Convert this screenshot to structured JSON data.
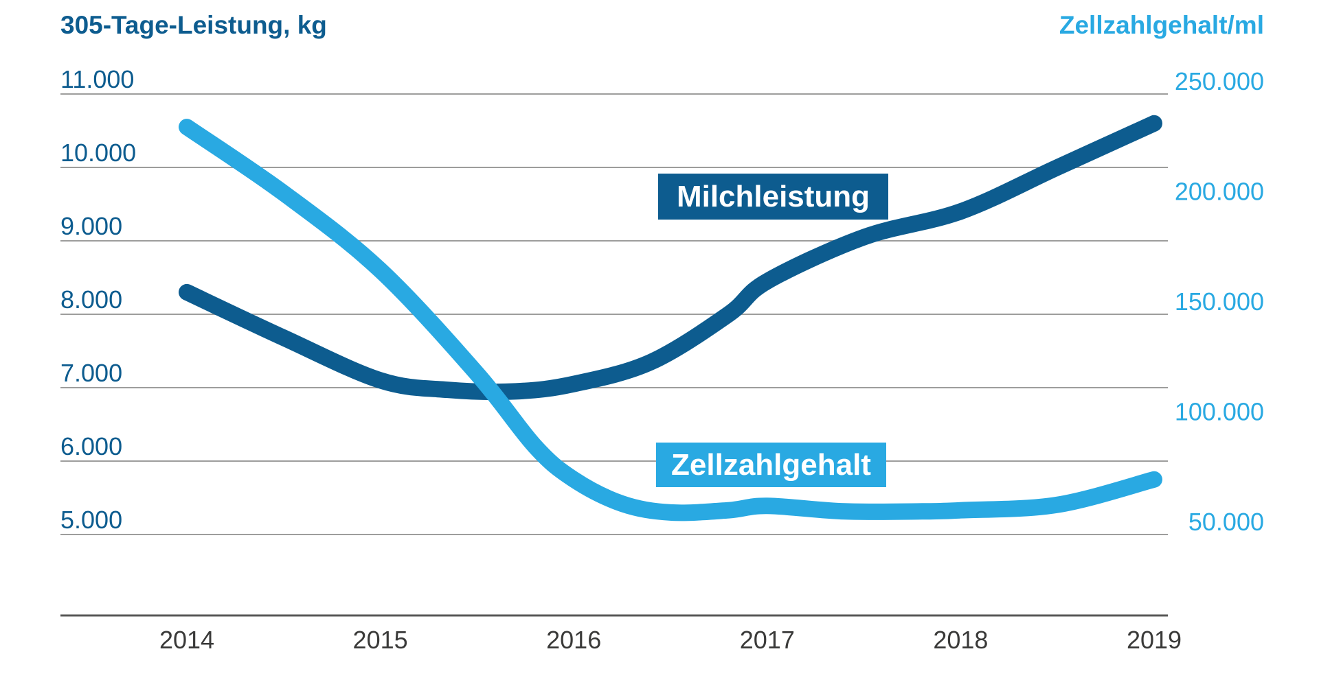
{
  "chart_data": {
    "type": "line",
    "title_left": "305-Tage-Leistung, kg",
    "title_right": "Zellzahlgehalt/ml",
    "x": {
      "tick_labels": [
        "2014",
        "2015",
        "2016",
        "2017",
        "2018",
        "2019"
      ],
      "tick_values": [
        2014,
        2015,
        2016,
        2017,
        2018,
        2019
      ],
      "label_color": "#3a3a39"
    },
    "axes": {
      "left": {
        "title": "305-Tage-Leistung, kg",
        "min": 5000,
        "max": 11000,
        "tick_values": [
          11000,
          10000,
          9000,
          8000,
          7000,
          6000,
          5000
        ],
        "tick_labels": [
          "11.000",
          "10.000",
          "9.000",
          "8.000",
          "7.000",
          "6.000",
          "5.000"
        ],
        "color": "#0d5c8f"
      },
      "right": {
        "title": "Zellzahlgehalt/ml",
        "min": 50000,
        "max": 250000,
        "tick_values": [
          250000,
          200000,
          150000,
          100000,
          50000
        ],
        "tick_labels": [
          "250.000",
          "200.000",
          "150.000",
          "100.000",
          "50.000"
        ],
        "color": "#29a9e2"
      }
    },
    "grid": {
      "color": "#9d9d9c",
      "show": true
    },
    "axis_line_color": "#575756",
    "legend_position": "inline-boxes",
    "series": [
      {
        "name": "Milchleistung",
        "axis": "left",
        "color": "#0d5c8f",
        "categories": [
          2014,
          2015,
          2016,
          2017,
          2018,
          2019
        ],
        "annual_values": [
          8300,
          7100,
          7050,
          8450,
          9400,
          10600
        ],
        "points": [
          [
            2014,
            8300
          ],
          [
            2014.5,
            7680
          ],
          [
            2015,
            7100
          ],
          [
            2015.35,
            6970
          ],
          [
            2015.7,
            6950
          ],
          [
            2016,
            7050
          ],
          [
            2016.4,
            7350
          ],
          [
            2016.8,
            8000
          ],
          [
            2017,
            8450
          ],
          [
            2017.5,
            9050
          ],
          [
            2018,
            9400
          ],
          [
            2018.5,
            10000
          ],
          [
            2019,
            10600
          ]
        ]
      },
      {
        "name": "Zellzahlgehalt",
        "axis": "right",
        "color": "#29a9e2",
        "categories": [
          2014,
          2015,
          2016,
          2017,
          2018,
          2019
        ],
        "annual_values": [
          235000,
          170000,
          75000,
          63000,
          61000,
          75000
        ],
        "points": [
          [
            2014,
            235000
          ],
          [
            2014.5,
            205000
          ],
          [
            2015,
            170000
          ],
          [
            2015.5,
            123000
          ],
          [
            2015.8,
            90000
          ],
          [
            2016,
            75000
          ],
          [
            2016.25,
            64000
          ],
          [
            2016.5,
            60000
          ],
          [
            2016.8,
            61000
          ],
          [
            2017,
            63000
          ],
          [
            2017.4,
            60500
          ],
          [
            2017.8,
            60500
          ],
          [
            2018,
            61000
          ],
          [
            2018.5,
            63500
          ],
          [
            2019,
            75000
          ]
        ]
      }
    ]
  },
  "legend": {
    "milchleistung": "Milchleistung",
    "zellzahlgehalt": "Zellzahlgehalt"
  }
}
